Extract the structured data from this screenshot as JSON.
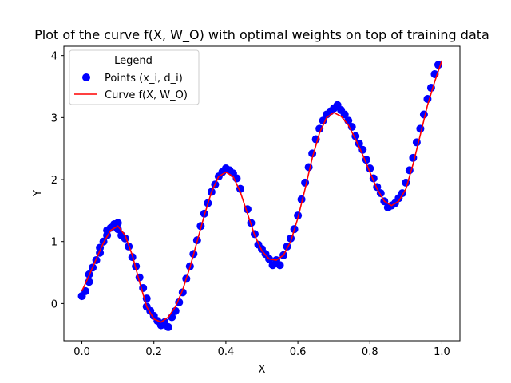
{
  "chart_data": {
    "type": "scatter",
    "title": "Plot of the curve f(X, W_O) with optimal weights on top of training data",
    "xlabel": "X",
    "ylabel": "Y",
    "xlim": [
      -0.05,
      1.05
    ],
    "ylim": [
      -0.6,
      4.15
    ],
    "xticks": [
      0.0,
      0.2,
      0.4,
      0.6,
      0.8,
      1.0
    ],
    "xtick_labels": [
      "0.0",
      "0.2",
      "0.4",
      "0.6",
      "0.8",
      "1.0"
    ],
    "yticks": [
      0,
      1,
      2,
      3,
      4
    ],
    "ytick_labels": [
      "0",
      "1",
      "2",
      "3",
      "4"
    ],
    "grid": false,
    "legend": {
      "title": "Legend",
      "placement": "top-left"
    },
    "series": [
      {
        "name": "Points (x_i, d_i)",
        "kind": "scatter",
        "color": "#0000ff",
        "points": [
          [
            0.0,
            0.12
          ],
          [
            0.01,
            0.2
          ],
          [
            0.02,
            0.35
          ],
          [
            0.02,
            0.47
          ],
          [
            0.03,
            0.58
          ],
          [
            0.04,
            0.7
          ],
          [
            0.05,
            0.82
          ],
          [
            0.05,
            0.9
          ],
          [
            0.06,
            1.0
          ],
          [
            0.07,
            1.1
          ],
          [
            0.07,
            1.18
          ],
          [
            0.08,
            1.22
          ],
          [
            0.09,
            1.28
          ],
          [
            0.1,
            1.3
          ],
          [
            0.1,
            1.2
          ],
          [
            0.11,
            1.1
          ],
          [
            0.12,
            1.05
          ],
          [
            0.13,
            0.92
          ],
          [
            0.14,
            0.75
          ],
          [
            0.15,
            0.6
          ],
          [
            0.16,
            0.42
          ],
          [
            0.17,
            0.25
          ],
          [
            0.18,
            0.08
          ],
          [
            0.18,
            -0.05
          ],
          [
            0.19,
            -0.12
          ],
          [
            0.2,
            -0.2
          ],
          [
            0.21,
            -0.28
          ],
          [
            0.22,
            -0.35
          ],
          [
            0.23,
            -0.3
          ],
          [
            0.24,
            -0.38
          ],
          [
            0.25,
            -0.22
          ],
          [
            0.26,
            -0.12
          ],
          [
            0.27,
            0.02
          ],
          [
            0.28,
            0.18
          ],
          [
            0.29,
            0.4
          ],
          [
            0.3,
            0.6
          ],
          [
            0.31,
            0.8
          ],
          [
            0.32,
            1.02
          ],
          [
            0.33,
            1.25
          ],
          [
            0.34,
            1.45
          ],
          [
            0.35,
            1.62
          ],
          [
            0.36,
            1.8
          ],
          [
            0.37,
            1.92
          ],
          [
            0.38,
            2.05
          ],
          [
            0.39,
            2.12
          ],
          [
            0.4,
            2.18
          ],
          [
            0.41,
            2.15
          ],
          [
            0.42,
            2.1
          ],
          [
            0.43,
            2.02
          ],
          [
            0.44,
            1.85
          ],
          [
            0.46,
            1.52
          ],
          [
            0.47,
            1.3
          ],
          [
            0.48,
            1.12
          ],
          [
            0.49,
            0.95
          ],
          [
            0.5,
            0.88
          ],
          [
            0.51,
            0.8
          ],
          [
            0.52,
            0.72
          ],
          [
            0.53,
            0.62
          ],
          [
            0.54,
            0.7
          ],
          [
            0.55,
            0.62
          ],
          [
            0.56,
            0.78
          ],
          [
            0.57,
            0.92
          ],
          [
            0.58,
            1.05
          ],
          [
            0.59,
            1.2
          ],
          [
            0.6,
            1.42
          ],
          [
            0.61,
            1.68
          ],
          [
            0.62,
            1.95
          ],
          [
            0.63,
            2.2
          ],
          [
            0.64,
            2.42
          ],
          [
            0.65,
            2.65
          ],
          [
            0.66,
            2.82
          ],
          [
            0.67,
            2.95
          ],
          [
            0.68,
            3.05
          ],
          [
            0.69,
            3.1
          ],
          [
            0.7,
            3.15
          ],
          [
            0.71,
            3.2
          ],
          [
            0.72,
            3.12
          ],
          [
            0.73,
            3.05
          ],
          [
            0.74,
            2.95
          ],
          [
            0.75,
            2.85
          ],
          [
            0.76,
            2.7
          ],
          [
            0.77,
            2.58
          ],
          [
            0.78,
            2.48
          ],
          [
            0.79,
            2.32
          ],
          [
            0.8,
            2.18
          ],
          [
            0.81,
            2.02
          ],
          [
            0.82,
            1.88
          ],
          [
            0.83,
            1.78
          ],
          [
            0.84,
            1.65
          ],
          [
            0.85,
            1.55
          ],
          [
            0.86,
            1.58
          ],
          [
            0.87,
            1.62
          ],
          [
            0.88,
            1.7
          ],
          [
            0.89,
            1.78
          ],
          [
            0.9,
            1.95
          ],
          [
            0.91,
            2.15
          ],
          [
            0.92,
            2.35
          ],
          [
            0.93,
            2.6
          ],
          [
            0.94,
            2.82
          ],
          [
            0.95,
            3.05
          ],
          [
            0.96,
            3.3
          ],
          [
            0.97,
            3.48
          ],
          [
            0.98,
            3.7
          ],
          [
            0.99,
            3.85
          ]
        ]
      },
      {
        "name": "Curve f(X, W_O)",
        "kind": "line",
        "color": "#ff0000",
        "points": [
          [
            0.0,
            0.2
          ],
          [
            0.02,
            0.45
          ],
          [
            0.04,
            0.72
          ],
          [
            0.06,
            0.98
          ],
          [
            0.08,
            1.18
          ],
          [
            0.1,
            1.25
          ],
          [
            0.12,
            1.1
          ],
          [
            0.14,
            0.78
          ],
          [
            0.16,
            0.35
          ],
          [
            0.18,
            -0.05
          ],
          [
            0.2,
            -0.25
          ],
          [
            0.22,
            -0.3
          ],
          [
            0.24,
            -0.22
          ],
          [
            0.26,
            -0.05
          ],
          [
            0.28,
            0.22
          ],
          [
            0.3,
            0.58
          ],
          [
            0.32,
            1.0
          ],
          [
            0.34,
            1.42
          ],
          [
            0.36,
            1.8
          ],
          [
            0.38,
            2.05
          ],
          [
            0.4,
            2.12
          ],
          [
            0.42,
            2.05
          ],
          [
            0.44,
            1.8
          ],
          [
            0.46,
            1.45
          ],
          [
            0.48,
            1.1
          ],
          [
            0.5,
            0.85
          ],
          [
            0.52,
            0.72
          ],
          [
            0.54,
            0.7
          ],
          [
            0.56,
            0.78
          ],
          [
            0.58,
            1.0
          ],
          [
            0.6,
            1.38
          ],
          [
            0.62,
            1.85
          ],
          [
            0.64,
            2.35
          ],
          [
            0.66,
            2.75
          ],
          [
            0.68,
            3.0
          ],
          [
            0.7,
            3.08
          ],
          [
            0.72,
            3.02
          ],
          [
            0.74,
            2.88
          ],
          [
            0.76,
            2.65
          ],
          [
            0.78,
            2.4
          ],
          [
            0.8,
            2.12
          ],
          [
            0.82,
            1.85
          ],
          [
            0.84,
            1.65
          ],
          [
            0.86,
            1.58
          ],
          [
            0.88,
            1.65
          ],
          [
            0.9,
            1.85
          ],
          [
            0.92,
            2.25
          ],
          [
            0.94,
            2.72
          ],
          [
            0.96,
            3.2
          ],
          [
            0.98,
            3.58
          ],
          [
            1.0,
            3.92
          ]
        ]
      }
    ]
  }
}
